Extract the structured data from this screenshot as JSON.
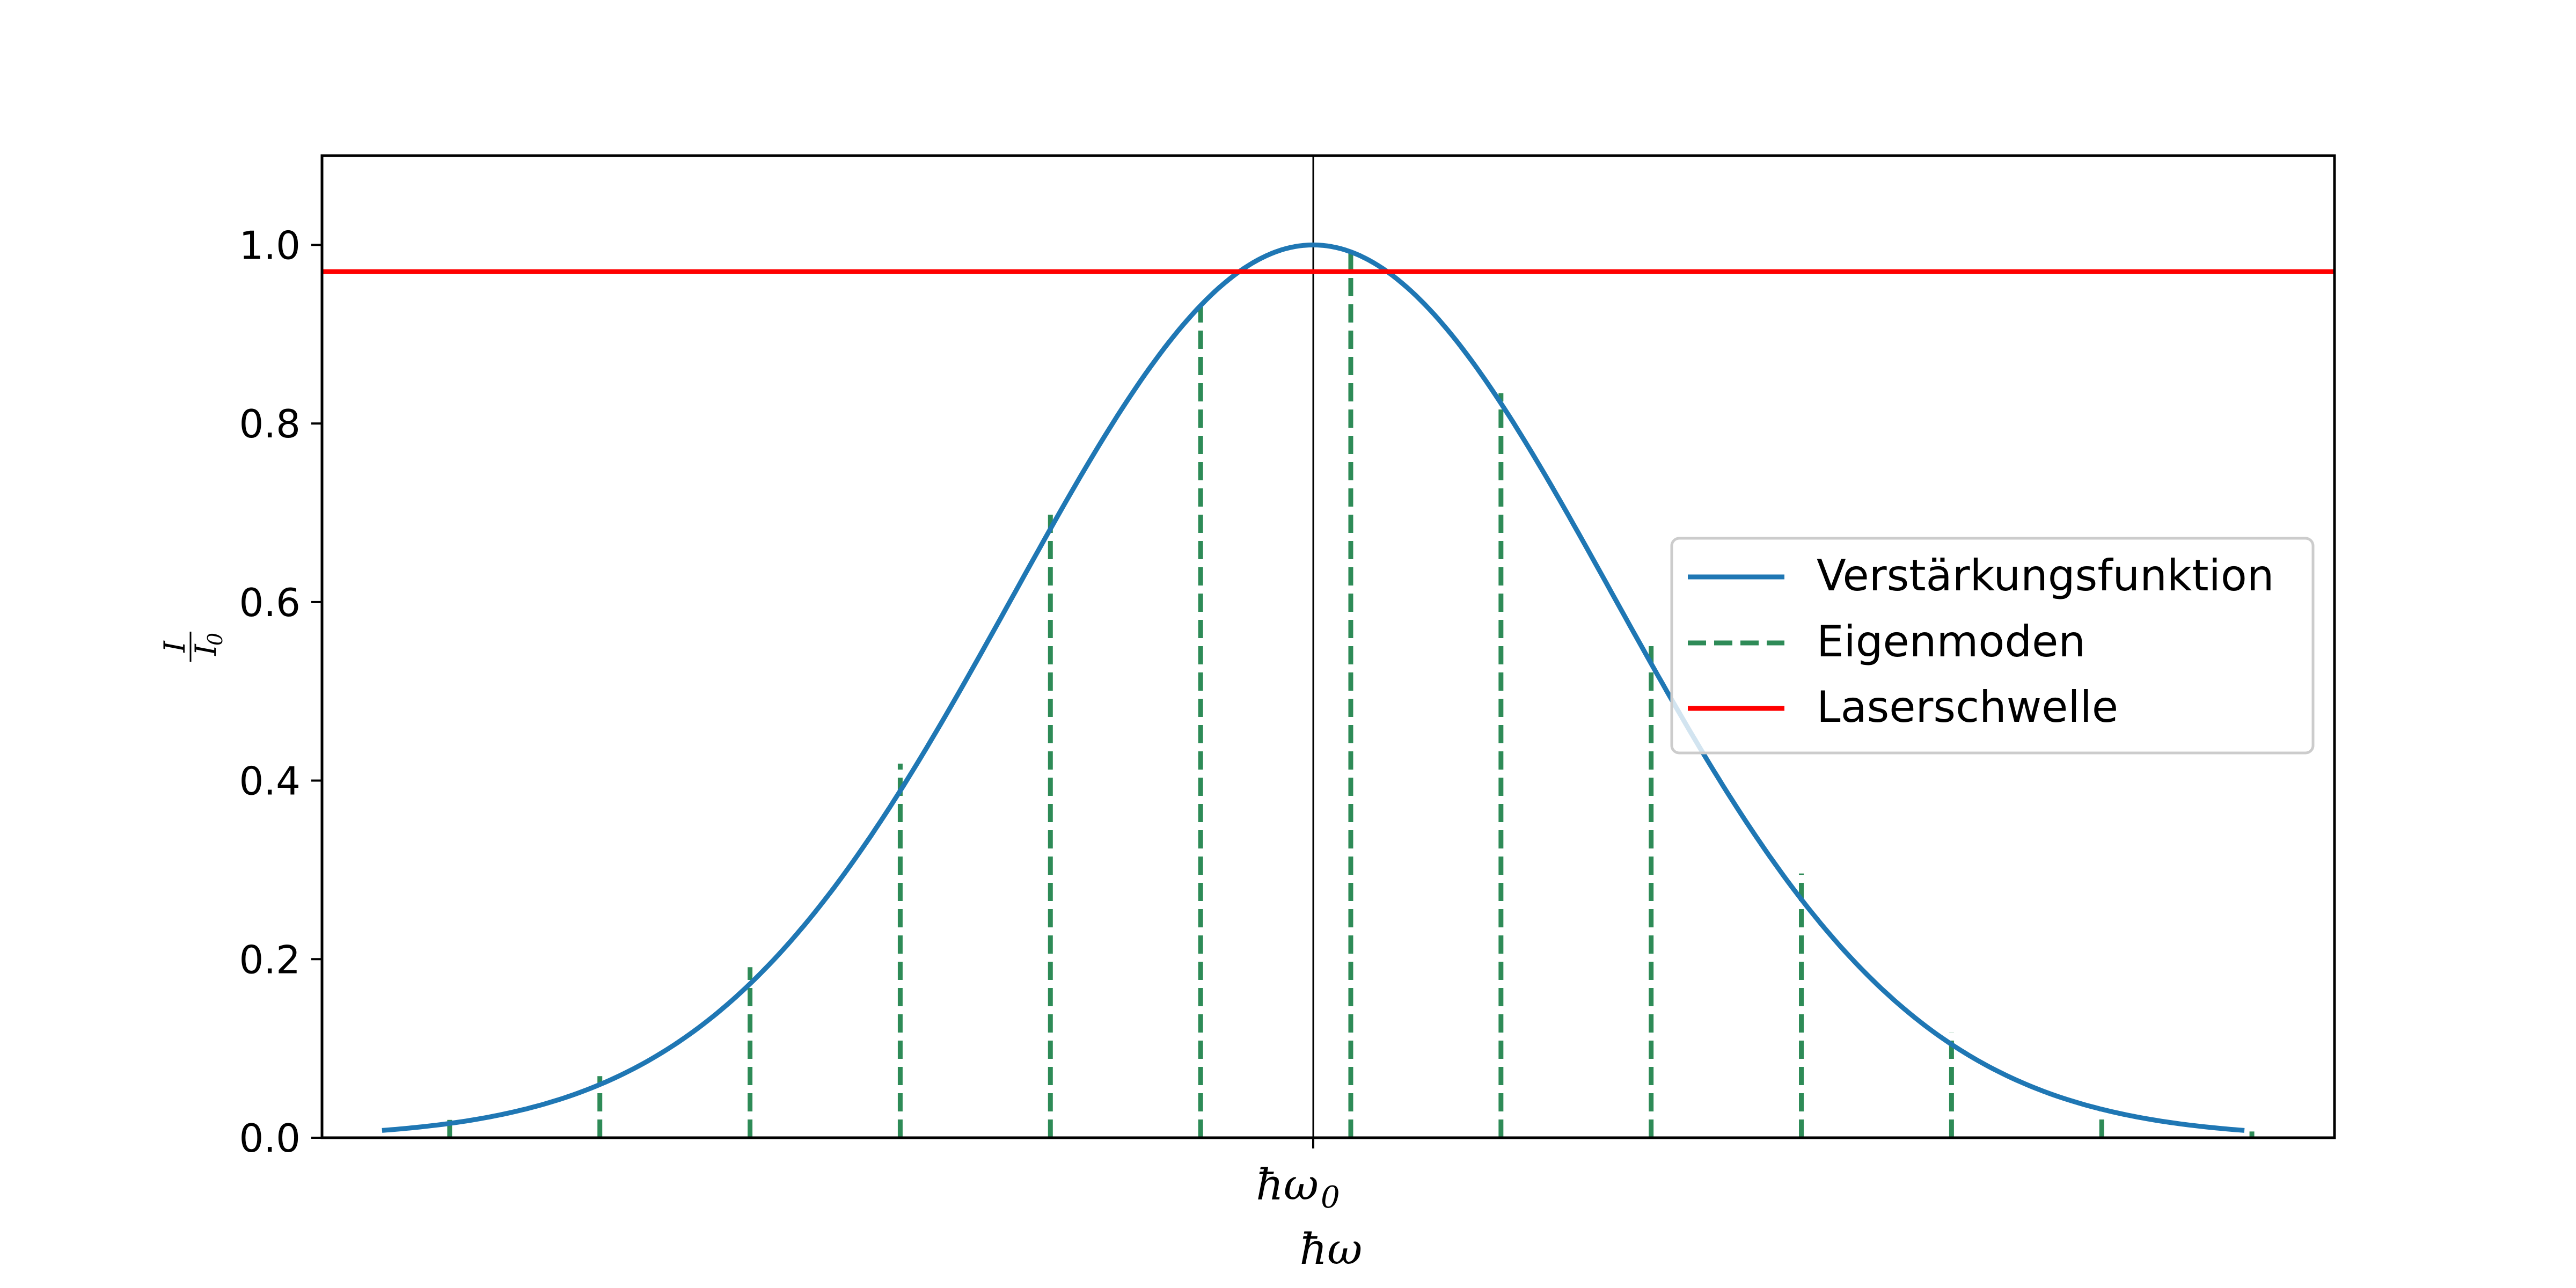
{
  "chart_data": {
    "type": "line",
    "xlabel": "ħω",
    "ylabel": "I / I₀",
    "ylabel_num": "I",
    "ylabel_den": "I",
    "ylabel_den_sub": "0",
    "x_tick_label": "ħω",
    "x_tick_label_sub": "0",
    "xlim": [
      -3.3,
      3.4
    ],
    "ylim": [
      0,
      1.1
    ],
    "y_ticks": [
      0.0,
      0.2,
      0.4,
      0.6,
      0.8,
      1.0
    ],
    "y_tick_labels": [
      "0.0",
      "0.2",
      "0.4",
      "0.6",
      "0.8",
      "1.0"
    ],
    "x_ticks": [
      0
    ],
    "center_line_x": 0,
    "grid": false,
    "legend_position": "center-right",
    "series": [
      {
        "name": "Verstärkungsfunktion",
        "style": "solid",
        "color": "#1f77b4",
        "function": "gaussian",
        "x_range": [
          -3.1,
          3.1
        ],
        "x": [
          -3.1,
          -2.5,
          -2.0,
          -1.5,
          -1.0,
          -0.5,
          0.0,
          0.5,
          1.0,
          1.5,
          2.0,
          2.5,
          3.1
        ],
        "y": [
          0.01,
          0.05,
          0.14,
          0.32,
          0.61,
          0.88,
          1.0,
          0.88,
          0.61,
          0.32,
          0.14,
          0.05,
          0.01
        ]
      },
      {
        "name": "Eigenmoden",
        "style": "dashed",
        "color": "#2e8b57",
        "x": [
          -2.875,
          -2.375,
          -1.875,
          -1.375,
          -0.875,
          -0.375,
          0.125,
          0.625,
          1.125,
          1.625,
          2.125,
          2.625,
          3.125
        ],
        "y": [
          0.02,
          0.069,
          0.191,
          0.419,
          0.705,
          0.932,
          0.992,
          0.834,
          0.553,
          0.296,
          0.118,
          0.032,
          0.007
        ]
      },
      {
        "name": "Laserschwelle",
        "style": "solid",
        "color": "#ff0000",
        "y": 0.97
      }
    ]
  }
}
